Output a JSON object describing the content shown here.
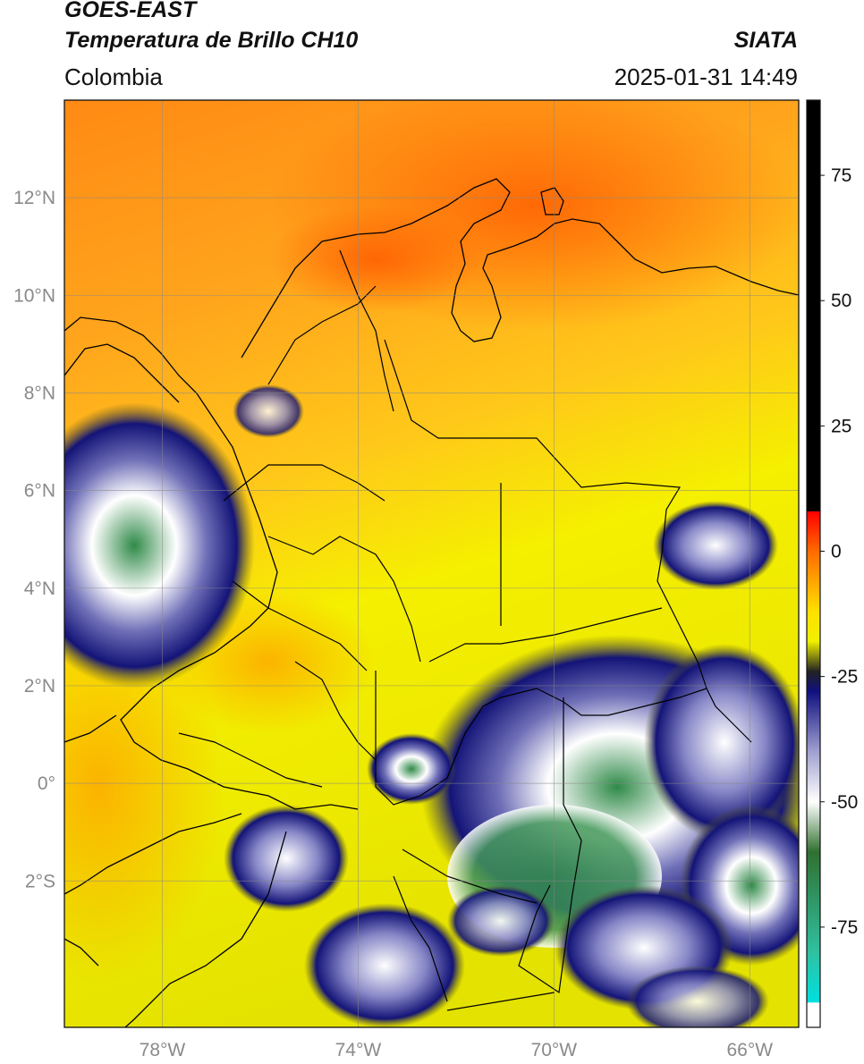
{
  "header": {
    "satellite": "GOES-EAST",
    "product": "Temperatura de Brillo CH10",
    "brand": "SIATA",
    "region": "Colombia",
    "datetime": "2025-01-31 14:49"
  },
  "map": {
    "lon_range": [
      -80,
      -65
    ],
    "lat_range": [
      -5,
      14
    ],
    "grid": true,
    "lon_ticks": [
      {
        "value": -78,
        "label": "78°W"
      },
      {
        "value": -74,
        "label": "74°W"
      },
      {
        "value": -70,
        "label": "70°W"
      },
      {
        "value": -66,
        "label": "66°W"
      }
    ],
    "lat_ticks": [
      {
        "value": 12,
        "label": "12°N"
      },
      {
        "value": 10,
        "label": "10°N"
      },
      {
        "value": 8,
        "label": "8°N"
      },
      {
        "value": 6,
        "label": "6°N"
      },
      {
        "value": 4,
        "label": "4°N"
      },
      {
        "value": 2,
        "label": "2°N"
      },
      {
        "value": 0,
        "label": "0°"
      },
      {
        "value": -2,
        "label": "2°S"
      }
    ],
    "colors": {
      "warm": "#ff7a10",
      "mid": "#ffa81a",
      "cool": "#f8f800",
      "cloud_edge": "#1a1a80",
      "cloud_white": "#ffffff",
      "cloud_green": "#2e8b40",
      "border": "#000000"
    }
  },
  "colorbar": {
    "range": [
      -95,
      90
    ],
    "ticks": [
      {
        "value": 75,
        "label": "75"
      },
      {
        "value": 50,
        "label": "50"
      },
      {
        "value": 25,
        "label": "25"
      },
      {
        "value": 0,
        "label": "0"
      },
      {
        "value": -25,
        "label": "-25"
      },
      {
        "value": -50,
        "label": "-50"
      },
      {
        "value": -75,
        "label": "-75"
      }
    ],
    "stops": [
      {
        "value": 90,
        "color": "#000000"
      },
      {
        "value": 8,
        "color": "#000000"
      },
      {
        "value": 7.9,
        "color": "#ff0000"
      },
      {
        "value": 0,
        "color": "#ff6a00"
      },
      {
        "value": -12,
        "color": "#ffe000"
      },
      {
        "value": -18,
        "color": "#f0f000"
      },
      {
        "value": -24,
        "color": "#222222"
      },
      {
        "value": -28,
        "color": "#101080"
      },
      {
        "value": -40,
        "color": "#a0a0d0"
      },
      {
        "value": -50,
        "color": "#ffffff"
      },
      {
        "value": -60,
        "color": "#307030"
      },
      {
        "value": -80,
        "color": "#30c0a0"
      },
      {
        "value": -90,
        "color": "#00e0e0"
      },
      {
        "value": -90.1,
        "color": "#ffffff"
      },
      {
        "value": -95,
        "color": "#ffffff"
      }
    ]
  }
}
